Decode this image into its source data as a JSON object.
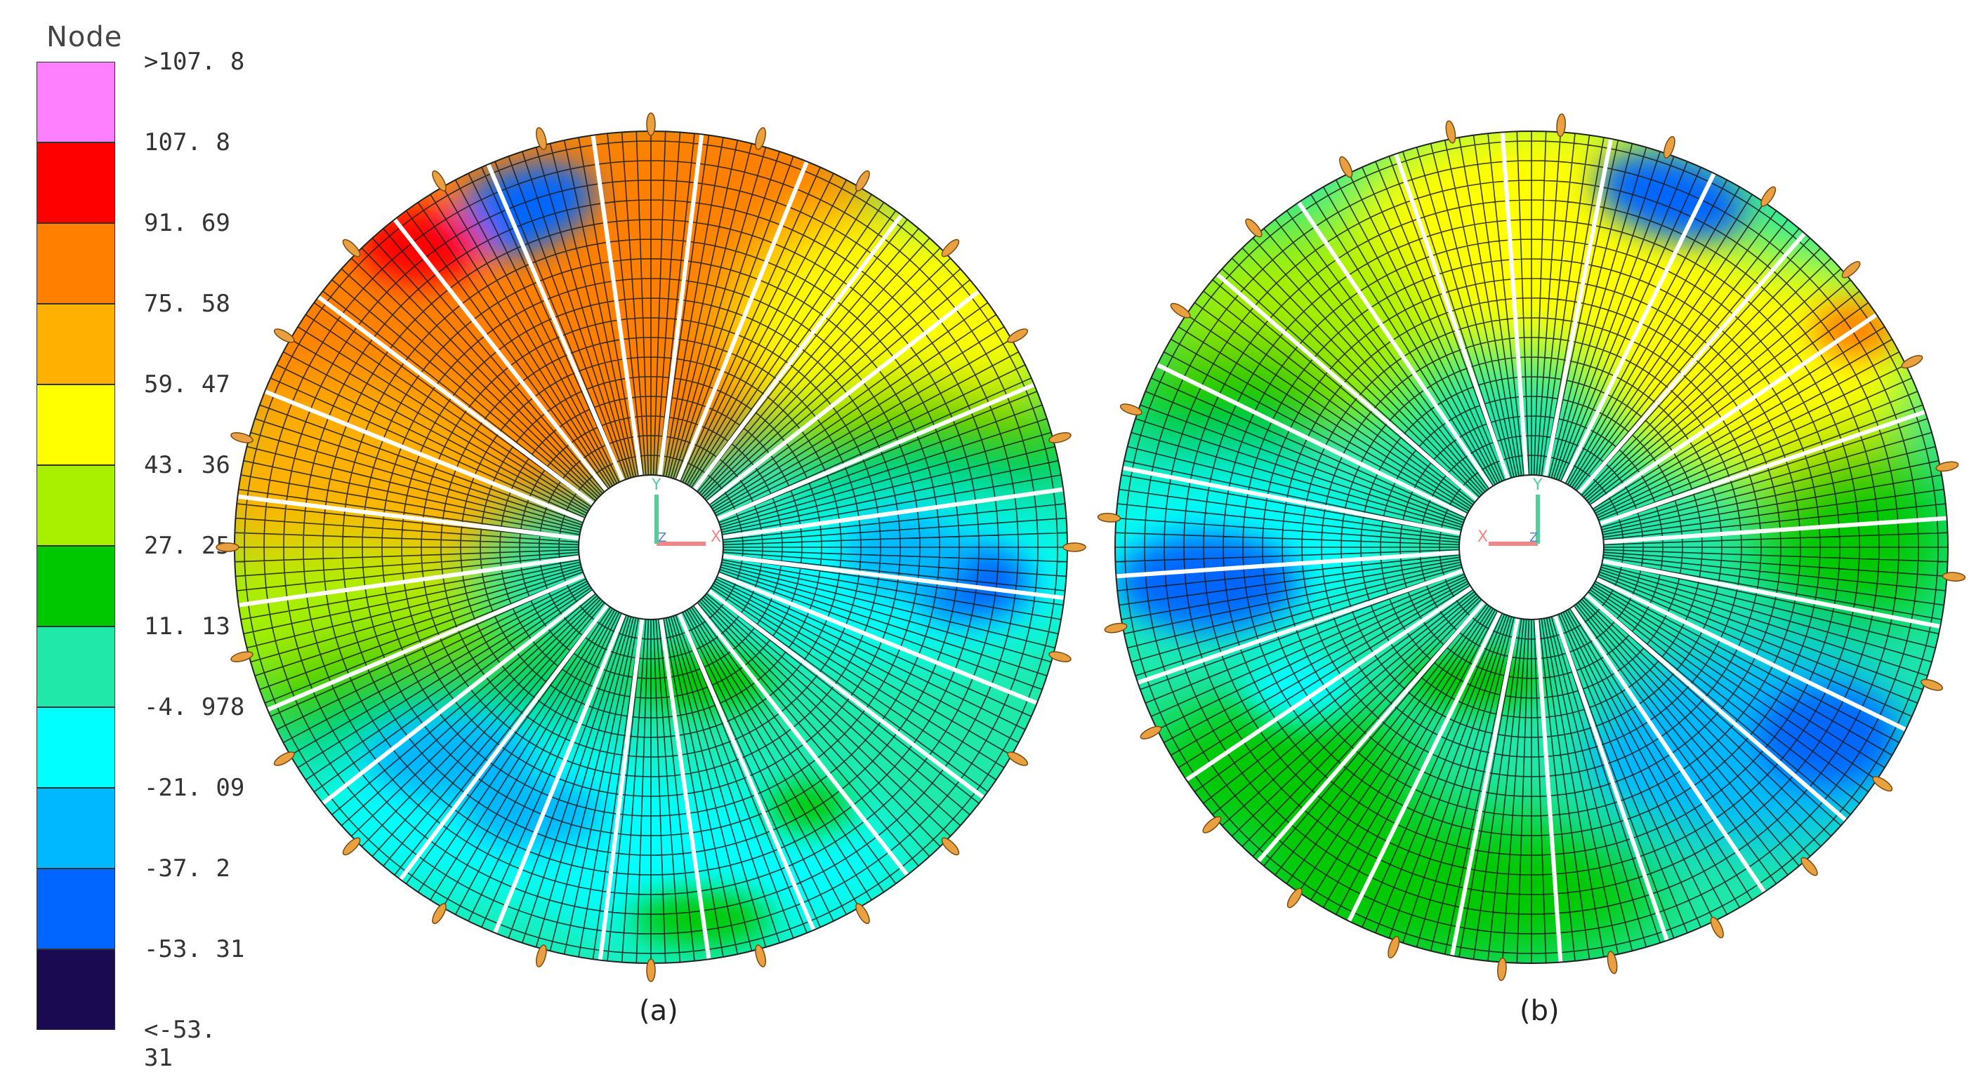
{
  "legend": {
    "title": "Node",
    "labels": [
      ">107. 8",
      "107. 8",
      "91. 69",
      "75. 58",
      "59. 47",
      "43. 36",
      "27. 25",
      "11. 13",
      "-4. 978",
      "-21. 09",
      "-37. 2",
      "-53. 31",
      "<-53. 31"
    ],
    "colors": [
      "#ff80ff",
      "#ff0000",
      "#ff8000",
      "#ffb000",
      "#ffff00",
      "#a8f000",
      "#00c800",
      "#20e8a8",
      "#00ffff",
      "#00b8ff",
      "#0066ff",
      "#1a0a52"
    ]
  },
  "figures": [
    {
      "caption": "(a)",
      "axis_labels": {
        "y": "Y",
        "x": "X",
        "z": "Z"
      }
    },
    {
      "caption": "(b)",
      "axis_labels": {
        "y": "Y",
        "x": "X",
        "z": "Z"
      }
    }
  ]
}
